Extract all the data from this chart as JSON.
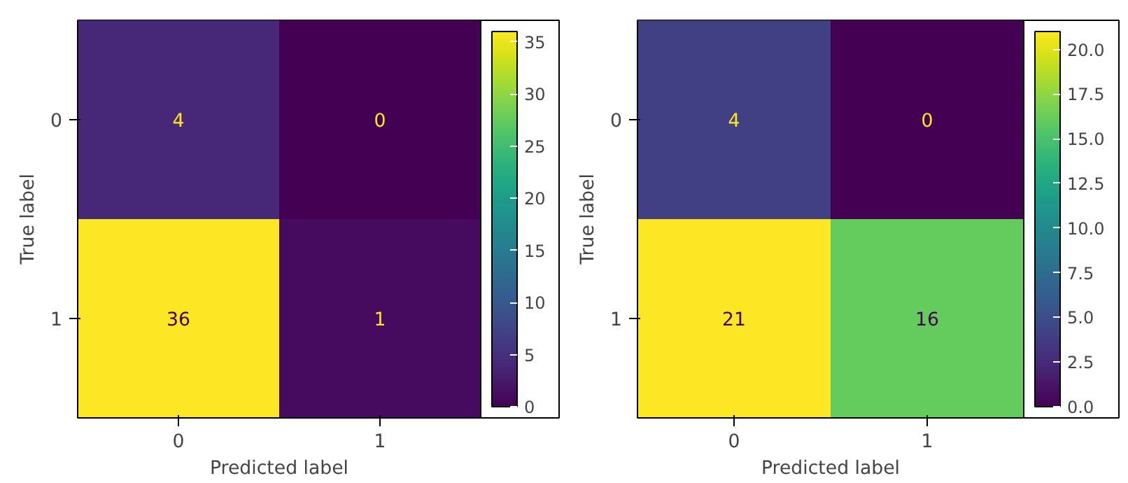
{
  "chart_data": [
    {
      "type": "heatmap",
      "xlabel": "Predicted label",
      "ylabel": "True label",
      "categories": [
        "0",
        "1"
      ],
      "y_categories": [
        "0",
        "1"
      ],
      "cells": [
        [
          4,
          0
        ],
        [
          36,
          1
        ]
      ],
      "data_labels": true,
      "clim": [
        0,
        36
      ],
      "cticks": [
        0,
        5,
        10,
        15,
        20,
        25,
        30,
        35
      ]
    },
    {
      "type": "heatmap",
      "xlabel": "Predicted label",
      "ylabel": "True label",
      "categories": [
        "0",
        "1"
      ],
      "y_categories": [
        "0",
        "1"
      ],
      "cells": [
        [
          4,
          0
        ],
        [
          21,
          16
        ]
      ],
      "data_labels": true,
      "clim": [
        0,
        21
      ],
      "cticks": [
        {
          "value": 0,
          "label": "0.0"
        },
        {
          "value": 2.5,
          "label": "2.5"
        },
        {
          "value": 5,
          "label": "5.0"
        },
        {
          "value": 7.5,
          "label": "7.5"
        },
        {
          "value": 10,
          "label": "10.0"
        },
        {
          "value": 12.5,
          "label": "12.5"
        },
        {
          "value": 15,
          "label": "15.0"
        },
        {
          "value": 17.5,
          "label": "17.5"
        },
        {
          "value": 20,
          "label": "20.0"
        }
      ]
    }
  ]
}
